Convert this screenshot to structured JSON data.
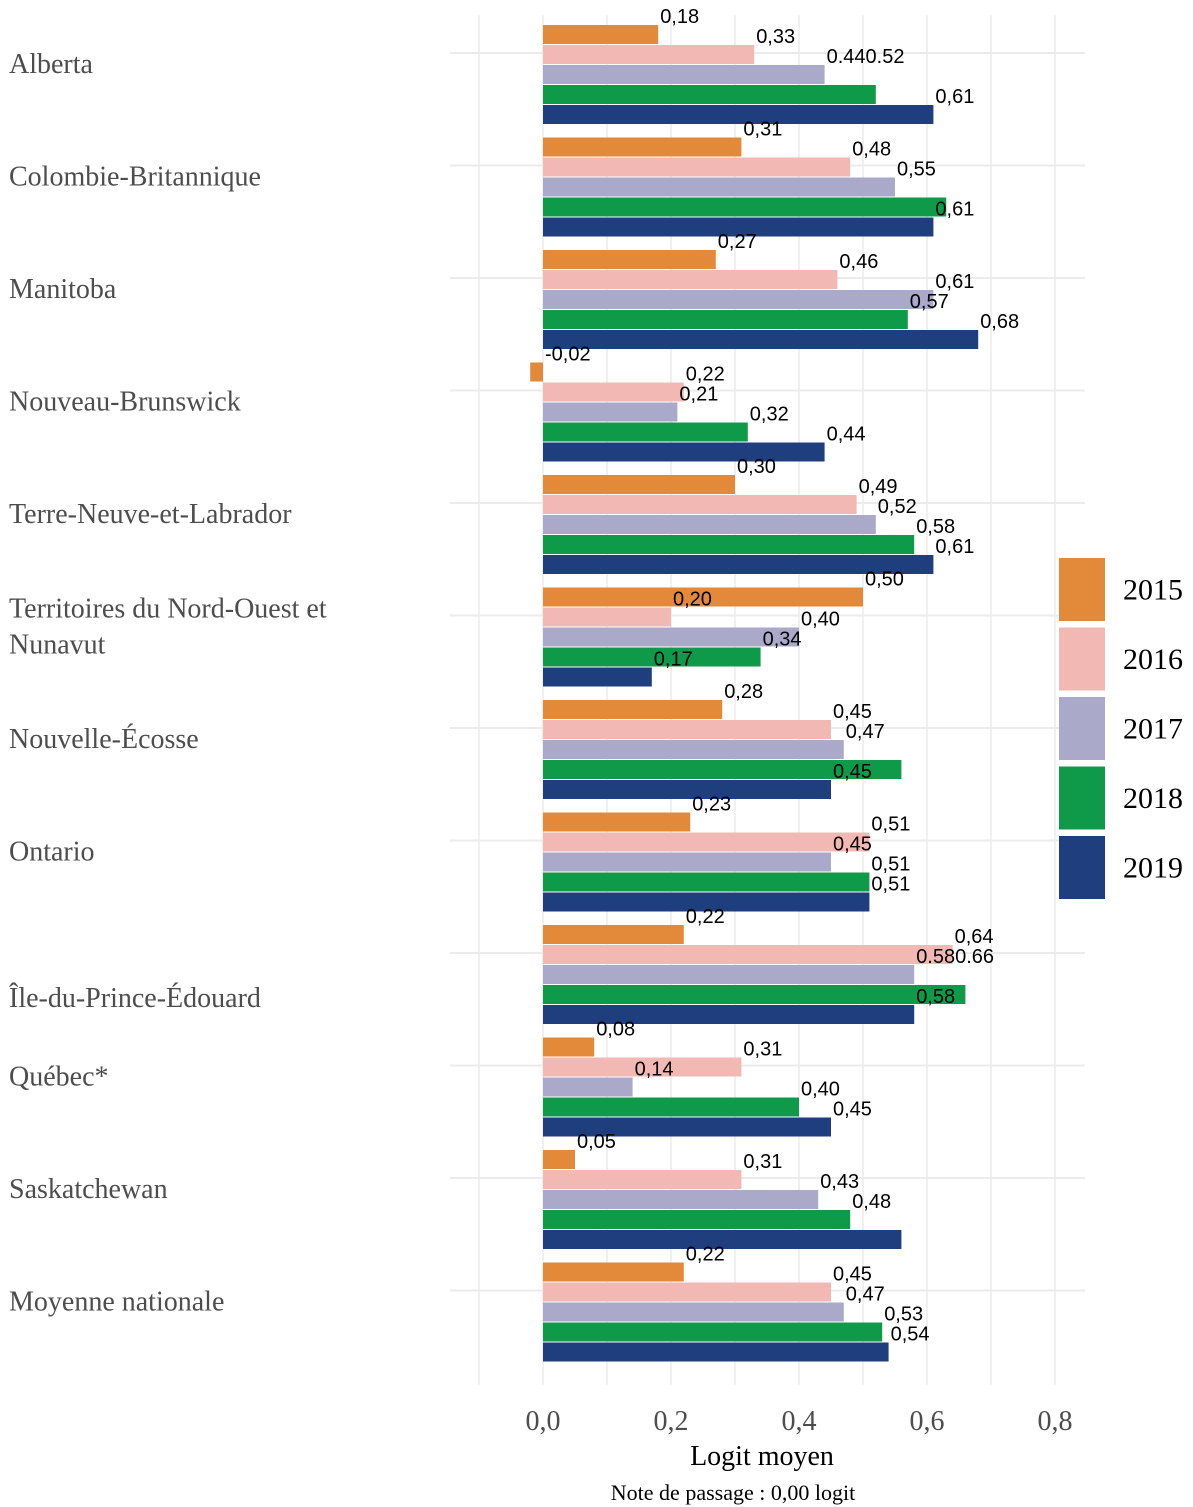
{
  "chart_data": {
    "type": "bar",
    "orientation": "horizontal",
    "xlabel": "Logit moyen",
    "xnote": "Note de passage : 0,00 logit",
    "xlim": [
      -0.2,
      1.6
    ],
    "xticks": [
      "0,0",
      "0,2",
      "0,4",
      "0,6",
      "0,8"
    ],
    "xtick_values": [
      0,
      0.2,
      0.4,
      0.6,
      0.8
    ],
    "grid": true,
    "legend_position": "right",
    "categories": [
      {
        "label": "Alberta",
        "lines": [
          "Alberta"
        ]
      },
      {
        "label": "Colombie-Britannique",
        "lines": [
          "Colombie-Britannique"
        ]
      },
      {
        "label": "Manitoba",
        "lines": [
          "Manitoba"
        ]
      },
      {
        "label": "Nouveau-Brunswick",
        "lines": [
          "Nouveau-Brunswick"
        ]
      },
      {
        "label": "Terre-Neuve-et-Labrador",
        "lines": [
          "Terre-Neuve-et-Labrador"
        ]
      },
      {
        "label": "Territoires du Nord-Ouest et Nunavut",
        "lines": [
          "Territoires du Nord-Ouest et",
          "Nunavut"
        ]
      },
      {
        "label": "Nouvelle-Écosse",
        "lines": [
          "Nouvelle-Écosse"
        ]
      },
      {
        "label": "Ontario",
        "lines": [
          "Ontario"
        ]
      },
      {
        "label": "Île-du-Prince-Édouard",
        "lines": [
          "Île-du-Prince-Édouard"
        ]
      },
      {
        "label": "Québec*",
        "lines": [
          "Québec*"
        ]
      },
      {
        "label": "Saskatchewan",
        "lines": [
          "Saskatchewan"
        ]
      },
      {
        "label": "Moyenne nationale",
        "lines": [
          "Moyenne nationale"
        ]
      }
    ],
    "series": [
      {
        "name": "2015",
        "color": "#E38A3A",
        "values": [
          0.18,
          0.31,
          0.27,
          -0.02,
          0.3,
          0.5,
          0.28,
          0.23,
          0.22,
          0.08,
          0.05,
          0.22
        ],
        "labels": [
          "0,18",
          "0,31",
          "0,27",
          "-0,02",
          "0,30",
          "0,50",
          "0,28",
          "0,23",
          "0,22",
          "0,08",
          "0,05",
          "0,22"
        ]
      },
      {
        "name": "2016",
        "color": "#F2B8B3",
        "values": [
          0.33,
          0.48,
          0.46,
          0.22,
          0.49,
          0.2,
          0.45,
          0.51,
          0.64,
          0.31,
          0.31,
          0.45
        ],
        "labels": [
          "0,33",
          "0,48",
          "0,46",
          "0,22",
          "0,49",
          "0,20",
          "0,45",
          "0,51",
          "0,64",
          "0,31",
          "0,31",
          "0,45"
        ]
      },
      {
        "name": "2017",
        "color": "#ABA9C9",
        "values": [
          0.44,
          0.55,
          0.61,
          0.21,
          0.52,
          0.4,
          0.47,
          0.45,
          0.58,
          0.14,
          0.43,
          0.47
        ],
        "labels": [
          "0.440.52",
          "0,55",
          "0,61",
          "0,21",
          "0,52",
          "0,40",
          "0,47",
          "0,45",
          "0.580.66",
          "0,14",
          "0,43",
          "0,47"
        ]
      },
      {
        "name": "2018",
        "color": "#0F9A4A",
        "values": [
          0.52,
          0.63,
          0.57,
          0.32,
          0.58,
          0.34,
          0.56,
          0.51,
          0.66,
          0.4,
          0.48,
          0.53
        ],
        "labels": [
          "",
          "",
          "0,57",
          "0,32",
          "0,58",
          "0,34",
          "",
          "0,51",
          "",
          "0,40",
          "0,48",
          "0,53"
        ]
      },
      {
        "name": "2019",
        "color": "#1F3E7E",
        "values": [
          0.61,
          0.61,
          0.68,
          0.44,
          0.61,
          0.17,
          0.45,
          0.51,
          0.58,
          0.45,
          0.56,
          0.54
        ],
        "labels": [
          "0,61",
          "0,61",
          "0,68",
          "0,44",
          "0,61",
          "0,17",
          "0,45",
          "0,51",
          "0,58",
          "0,45",
          "",
          "0,54"
        ]
      }
    ]
  }
}
